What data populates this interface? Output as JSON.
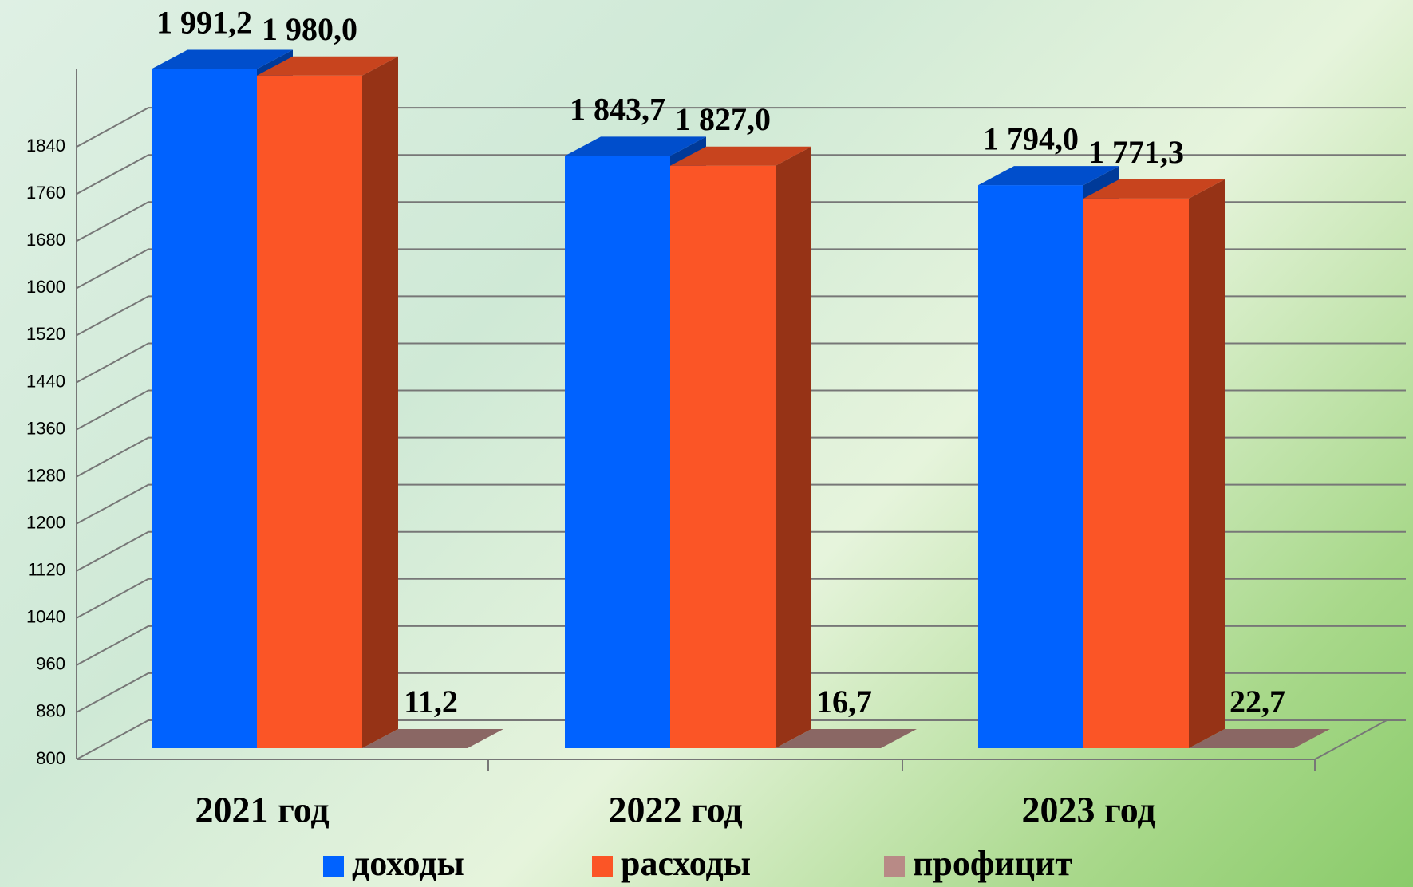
{
  "chart_data": {
    "type": "bar3d",
    "categories": [
      "2021 год",
      "2022  год",
      "2023 год"
    ],
    "series": [
      {
        "name": "доходы",
        "color": "#0062ff",
        "values": [
          1991.2,
          1843.7,
          1794.0
        ],
        "value_labels": [
          "1 991,2",
          "1 843,7",
          "1 794,0"
        ]
      },
      {
        "name": "расходы",
        "color": "#fb5526",
        "values": [
          1980.0,
          1827.0,
          1771.3
        ],
        "value_labels": [
          "1 980,0",
          "1 827,0",
          "1 771,3"
        ]
      },
      {
        "name": "профицит",
        "color": "#b88a86",
        "values": [
          11.2,
          16.7,
          22.7
        ],
        "value_labels": [
          "11,2",
          "16,7",
          "22,7"
        ]
      }
    ],
    "ylim": [
      800,
      2000
    ],
    "yticks": [
      800,
      880,
      960,
      1040,
      1120,
      1200,
      1280,
      1360,
      1440,
      1520,
      1600,
      1680,
      1760,
      1840
    ],
    "grid": true
  }
}
